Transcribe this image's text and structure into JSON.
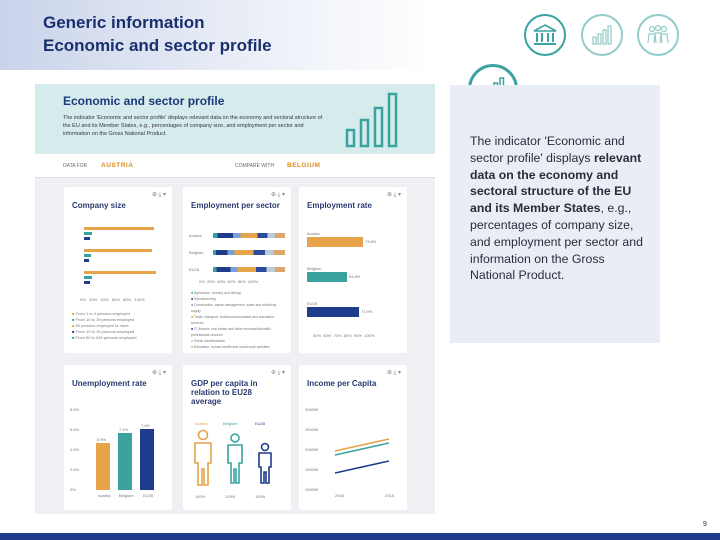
{
  "header": {
    "title": "Generic information",
    "subtitle": "Economic and sector profile"
  },
  "icons": {
    "top": [
      "institution-icon",
      "bar-chart-icon",
      "people-group-icon"
    ],
    "highlighted": "bar-chart-icon",
    "accent_color": "#3aa3a0"
  },
  "screenshot": {
    "banner_title": "Economic and sector profile",
    "banner_text": "The indicator 'Economic and sector profile' displays relevant data on the economy and sectoral structure of the EU and its Member States, e.g., percentages of company size, and employment per sector and information on the Gross National Product.",
    "data_for_label": "DATA FOR",
    "data_for_value": "AUSTRIA",
    "compare_label": "COMPARE WITH",
    "compare_value": "BELGIUM",
    "cards": {
      "company_size": {
        "title": "Company size",
        "axis": [
          "0%",
          "20%",
          "40%",
          "60%",
          "80%",
          "100%"
        ],
        "legend": [
          "From 1 to 4 persons employed",
          "From 10 to 19 persons employed",
          "50 persons employed or more",
          "From 12 to 19 persons employed",
          "From 50 to 249 persons employed"
        ]
      },
      "employment_per_sector": {
        "title": "Employment per sector",
        "rows": [
          "Austria",
          "Belgium",
          "EU28"
        ],
        "axis": [
          "0%",
          "20%",
          "40%",
          "60%",
          "80%",
          "100%"
        ],
        "legend": [
          "Agriculture, forestry and fishing",
          "Manufacturing",
          "Construction, waste management, water and electricity supply",
          "Trade, transport, food/accommodation and recreation services",
          "IT, finance, real estate and other technical/scientific professional services",
          "Public administration",
          "Education, human health and social work activities"
        ]
      },
      "employment_rate": {
        "title": "Employment rate",
        "rows": [
          "Austria",
          "Belgium",
          "EU28"
        ],
        "values": [
          "73.8%",
          "64.8%",
          "71.9%"
        ],
        "axis": [
          "50%",
          "60%",
          "70%",
          "80%",
          "90%",
          "100%"
        ]
      },
      "unemployment_rate": {
        "title": "Unemployment rate",
        "y_axis": [
          "8.0%",
          "6.0%",
          "4.0%",
          "2.0%",
          "0%"
        ],
        "bars": [
          "Austria",
          "Belgium",
          "EU28"
        ],
        "values": [
          "5.5%",
          "7.1%",
          "7.6%"
        ]
      },
      "gdp": {
        "title": "GDP per capita in relation to EU28 average",
        "labels": [
          "Austria",
          "Belgium",
          "EU28"
        ],
        "values": [
          "140%",
          "129%",
          "100%"
        ]
      },
      "income": {
        "title": "Income per Capita",
        "y_axis": [
          "30000€",
          "25000€",
          "20000€",
          "15000€",
          "10000€"
        ],
        "x_axis": [
          "2008",
          "2018"
        ]
      }
    }
  },
  "panel": {
    "text_1": "The indicator 'Economic and sector profile' displays ",
    "bold_1": "relevant data on the economy and sectoral structure of the EU and its Member States",
    "text_2": ", e.g., percentages of company size, and employment per sector and information on the Gross National Product."
  },
  "footer": {
    "page_number": "9",
    "bar_color": "#1f3c8c"
  }
}
